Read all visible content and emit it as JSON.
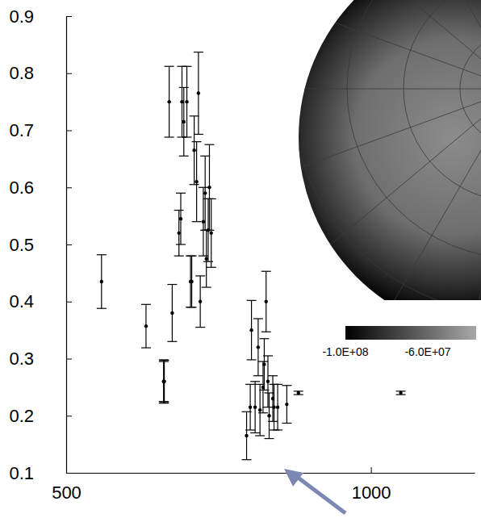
{
  "chart_data": {
    "type": "scatter",
    "color": "#000000",
    "marker": "circle",
    "x": [
      558,
      631,
      660,
      660,
      661,
      669,
      674,
      685,
      688,
      690,
      693,
      698,
      704,
      706,
      710,
      714,
      717,
      720,
      725,
      728,
      730,
      733,
      735,
      738,
      796,
      802,
      804,
      810,
      815,
      818,
      823,
      825,
      828,
      831,
      833,
      839,
      841,
      847,
      862,
      881,
      1049
    ],
    "values": [
      0.435,
      0.357,
      0.26,
      0.26,
      0.26,
      0.75,
      0.38,
      0.52,
      0.545,
      0.75,
      0.715,
      0.75,
      0.435,
      0.435,
      0.665,
      0.61,
      0.765,
      0.4,
      0.54,
      0.59,
      0.475,
      0.525,
      0.6,
      0.52,
      0.165,
      0.215,
      0.35,
      0.215,
      0.32,
      0.21,
      0.25,
      0.29,
      0.4,
      0.26,
      0.2,
      0.23,
      0.215,
      0.215,
      0.22,
      0.24,
      0.24
    ],
    "errors": [
      0.047,
      0.038,
      0.038,
      0.035,
      0.037,
      0.062,
      0.05,
      0.04,
      0.045,
      0.062,
      0.06,
      0.062,
      0.045,
      0.045,
      0.06,
      0.07,
      0.072,
      0.045,
      0.06,
      0.065,
      0.05,
      0.055,
      0.075,
      0.06,
      0.042,
      0.04,
      0.052,
      0.045,
      0.05,
      0.045,
      0.045,
      0.045,
      0.053,
      0.045,
      0.04,
      0.04,
      0.04,
      0.04,
      0.033,
      0.003,
      0.003
    ],
    "xlim": [
      500,
      1170
    ],
    "xticks": [
      500,
      1000
    ],
    "ylim": [
      0.1,
      0.9
    ],
    "yticks": [
      0.1,
      0.2,
      0.3,
      0.4,
      0.5,
      0.6,
      0.7,
      0.8,
      0.9
    ],
    "colorbar": {
      "range": [
        -100000000,
        -36500000
      ],
      "ticks": [
        {
          "value": -100000000,
          "label": "-1.0E+08"
        },
        {
          "value": -60000000,
          "label": "-6.0E+07"
        }
      ]
    }
  }
}
